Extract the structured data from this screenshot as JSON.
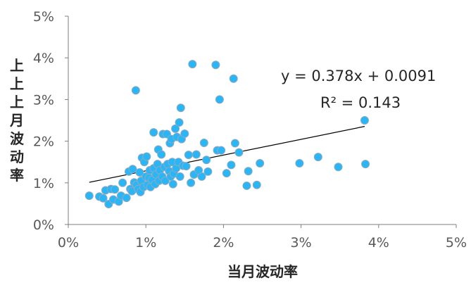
{
  "chart_data": {
    "type": "scatter",
    "xlabel": "当月波动率",
    "ylabel": "上上上月波动率",
    "xlim": [
      0,
      0.05
    ],
    "ylim": [
      0,
      0.05
    ],
    "x_ticks": [
      "0%",
      "1%",
      "2%",
      "3%",
      "4%",
      "5%"
    ],
    "y_ticks": [
      "0%",
      "1%",
      "2%",
      "3%",
      "4%",
      "5%"
    ],
    "grid": false,
    "marker_color": "#29B6F6",
    "marker_edge_color": "#8FA8BF",
    "trendline_color": "#000000",
    "equation_text": "y = 0.378x + 0.0091",
    "r2_text": "R² = 0.143",
    "trendline": {
      "slope": 0.378,
      "intercept": 0.0091,
      "x_range": [
        0.0027,
        0.0382
      ]
    },
    "points": [
      [
        0.0027,
        0.0069
      ],
      [
        0.004,
        0.0067
      ],
      [
        0.0045,
        0.0063
      ],
      [
        0.0048,
        0.0082
      ],
      [
        0.0052,
        0.0049
      ],
      [
        0.0055,
        0.0085
      ],
      [
        0.0058,
        0.006
      ],
      [
        0.006,
        0.0084
      ],
      [
        0.0065,
        0.0055
      ],
      [
        0.0068,
        0.0069
      ],
      [
        0.007,
        0.01
      ],
      [
        0.0075,
        0.0064
      ],
      [
        0.0078,
        0.0127
      ],
      [
        0.008,
        0.0085
      ],
      [
        0.0082,
        0.008
      ],
      [
        0.0083,
        0.0133
      ],
      [
        0.0085,
        0.0101
      ],
      [
        0.0087,
        0.0322
      ],
      [
        0.0088,
        0.0095
      ],
      [
        0.009,
        0.0085
      ],
      [
        0.0092,
        0.0125
      ],
      [
        0.0093,
        0.0078
      ],
      [
        0.0094,
        0.0105
      ],
      [
        0.0095,
        0.016
      ],
      [
        0.0097,
        0.009
      ],
      [
        0.0098,
        0.015
      ],
      [
        0.01,
        0.0115
      ],
      [
        0.0101,
        0.0163
      ],
      [
        0.0102,
        0.0095
      ],
      [
        0.0104,
        0.0112
      ],
      [
        0.0105,
        0.013
      ],
      [
        0.0106,
        0.009
      ],
      [
        0.0108,
        0.0107
      ],
      [
        0.011,
        0.0221
      ],
      [
        0.011,
        0.0135
      ],
      [
        0.0112,
        0.0097
      ],
      [
        0.0113,
        0.012
      ],
      [
        0.0115,
        0.0145
      ],
      [
        0.0116,
        0.018
      ],
      [
        0.0117,
        0.0105
      ],
      [
        0.0118,
        0.013
      ],
      [
        0.012,
        0.0168
      ],
      [
        0.0121,
        0.0115
      ],
      [
        0.0122,
        0.0217
      ],
      [
        0.0124,
        0.0138
      ],
      [
        0.0125,
        0.0105
      ],
      [
        0.0127,
        0.0217
      ],
      [
        0.0128,
        0.0145
      ],
      [
        0.013,
        0.0128
      ],
      [
        0.0131,
        0.0195
      ],
      [
        0.0132,
        0.0115
      ],
      [
        0.0133,
        0.0205
      ],
      [
        0.0134,
        0.015
      ],
      [
        0.0135,
        0.0097
      ],
      [
        0.0136,
        0.0122
      ],
      [
        0.0138,
        0.023
      ],
      [
        0.0139,
        0.0135
      ],
      [
        0.014,
        0.021
      ],
      [
        0.0142,
        0.015
      ],
      [
        0.0143,
        0.0245
      ],
      [
        0.0144,
        0.0115
      ],
      [
        0.0145,
        0.028
      ],
      [
        0.0146,
        0.0205
      ],
      [
        0.0148,
        0.0141
      ],
      [
        0.015,
        0.0218
      ],
      [
        0.0152,
        0.014
      ],
      [
        0.0155,
        0.0167
      ],
      [
        0.0158,
        0.01
      ],
      [
        0.016,
        0.0385
      ],
      [
        0.0162,
        0.012
      ],
      [
        0.0165,
        0.0168
      ],
      [
        0.0168,
        0.013
      ],
      [
        0.0172,
        0.0115
      ],
      [
        0.0175,
        0.0196
      ],
      [
        0.0178,
        0.0155
      ],
      [
        0.018,
        0.0127
      ],
      [
        0.019,
        0.0383
      ],
      [
        0.0192,
        0.0178
      ],
      [
        0.0195,
        0.03
      ],
      [
        0.0197,
        0.0178
      ],
      [
        0.0204,
        0.0123
      ],
      [
        0.021,
        0.0143
      ],
      [
        0.0213,
        0.035
      ],
      [
        0.0215,
        0.0195
      ],
      [
        0.022,
        0.0173
      ],
      [
        0.023,
        0.0093
      ],
      [
        0.0232,
        0.0128
      ],
      [
        0.0243,
        0.0095
      ],
      [
        0.0247,
        0.0147
      ],
      [
        0.0298,
        0.0147
      ],
      [
        0.0322,
        0.0162
      ],
      [
        0.0348,
        0.0138
      ],
      [
        0.0382,
        0.025
      ],
      [
        0.0383,
        0.0145
      ]
    ]
  }
}
